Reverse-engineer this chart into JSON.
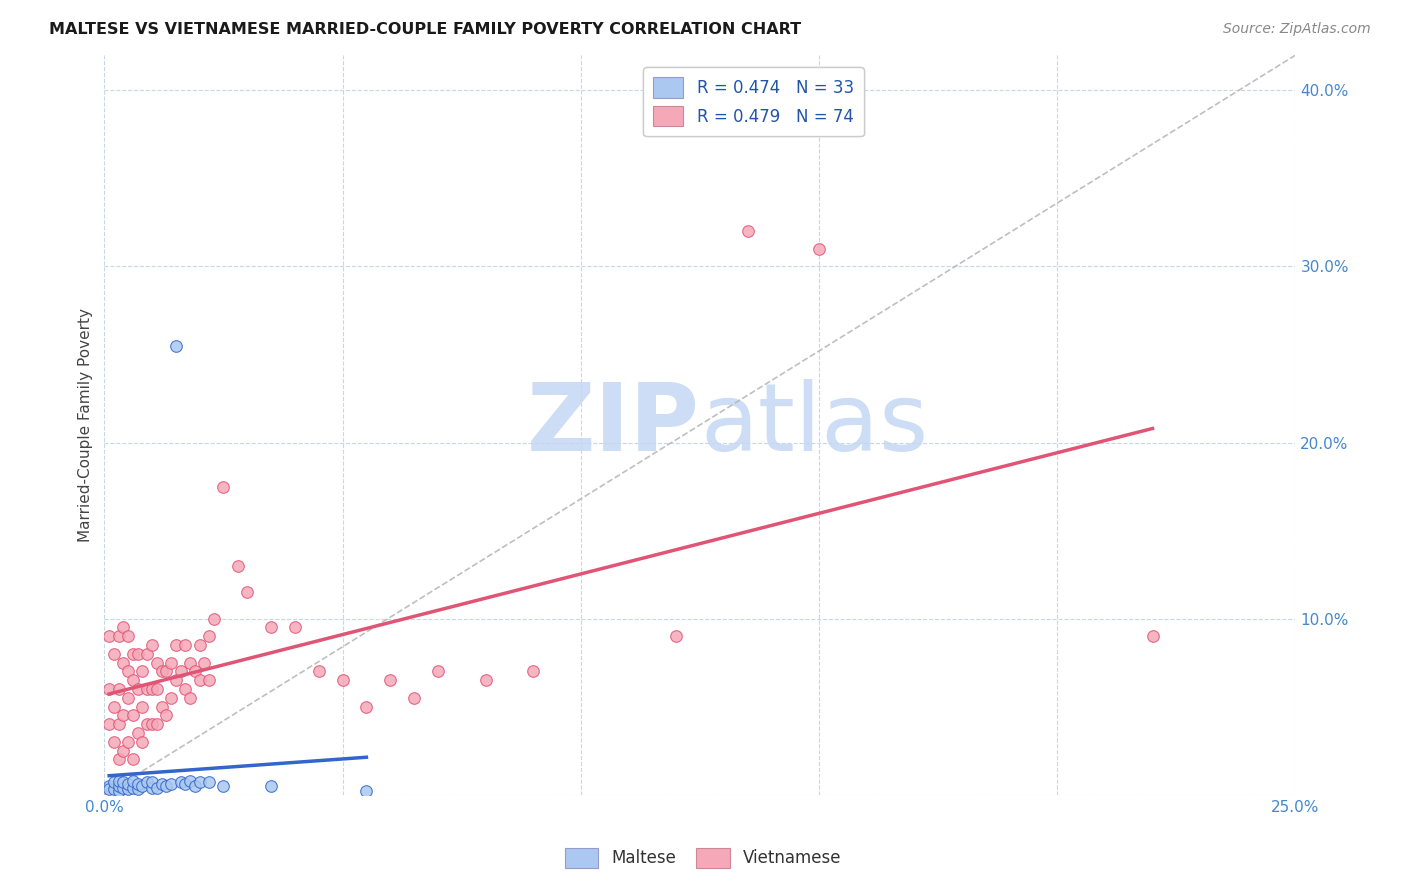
{
  "title": "MALTESE VS VIETNAMESE MARRIED-COUPLE FAMILY POVERTY CORRELATION CHART",
  "source": "Source: ZipAtlas.com",
  "ylabel": "Married-Couple Family Poverty",
  "xlim": [
    0.0,
    0.25
  ],
  "ylim": [
    0.0,
    0.42
  ],
  "maltese_line_color": "#3366cc",
  "vietnamese_line_color": "#e05575",
  "maltese_scatter_color": "#aac8f0",
  "vietnamese_scatter_color": "#f5a8b8",
  "diagonal_line_color": "#b8b8b8",
  "watermark_zip": "ZIP",
  "watermark_atlas": "atlas",
  "watermark_zip_color": "#ccddf5",
  "watermark_atlas_color": "#ccddf5",
  "scatter_size": 70,
  "maltese_R": 0.474,
  "maltese_N": 33,
  "vietnamese_R": 0.479,
  "vietnamese_N": 74,
  "bottom_legend": [
    "Maltese",
    "Vietnamese"
  ],
  "maltese_x": [
    0.001,
    0.001,
    0.002,
    0.002,
    0.003,
    0.003,
    0.003,
    0.004,
    0.004,
    0.005,
    0.005,
    0.006,
    0.006,
    0.007,
    0.007,
    0.008,
    0.009,
    0.01,
    0.01,
    0.011,
    0.012,
    0.013,
    0.014,
    0.015,
    0.016,
    0.017,
    0.018,
    0.019,
    0.02,
    0.022,
    0.025,
    0.035,
    0.055
  ],
  "maltese_y": [
    0.005,
    0.003,
    0.003,
    0.007,
    0.002,
    0.005,
    0.008,
    0.004,
    0.007,
    0.003,
    0.006,
    0.004,
    0.008,
    0.003,
    0.006,
    0.005,
    0.007,
    0.004,
    0.007,
    0.004,
    0.006,
    0.005,
    0.006,
    0.255,
    0.007,
    0.006,
    0.008,
    0.005,
    0.007,
    0.007,
    0.005,
    0.005,
    0.002
  ],
  "vietnamese_x": [
    0.001,
    0.001,
    0.001,
    0.002,
    0.002,
    0.002,
    0.003,
    0.003,
    0.003,
    0.003,
    0.004,
    0.004,
    0.004,
    0.004,
    0.005,
    0.005,
    0.005,
    0.005,
    0.006,
    0.006,
    0.006,
    0.006,
    0.007,
    0.007,
    0.007,
    0.008,
    0.008,
    0.008,
    0.009,
    0.009,
    0.009,
    0.01,
    0.01,
    0.01,
    0.011,
    0.011,
    0.011,
    0.012,
    0.012,
    0.013,
    0.013,
    0.014,
    0.014,
    0.015,
    0.015,
    0.016,
    0.017,
    0.017,
    0.018,
    0.018,
    0.019,
    0.02,
    0.02,
    0.021,
    0.022,
    0.022,
    0.023,
    0.025,
    0.028,
    0.03,
    0.035,
    0.04,
    0.045,
    0.05,
    0.055,
    0.06,
    0.065,
    0.07,
    0.08,
    0.09,
    0.12,
    0.135,
    0.15,
    0.22
  ],
  "vietnamese_y": [
    0.04,
    0.06,
    0.09,
    0.03,
    0.05,
    0.08,
    0.02,
    0.04,
    0.06,
    0.09,
    0.025,
    0.045,
    0.075,
    0.095,
    0.03,
    0.055,
    0.07,
    0.09,
    0.02,
    0.045,
    0.065,
    0.08,
    0.035,
    0.06,
    0.08,
    0.03,
    0.05,
    0.07,
    0.04,
    0.06,
    0.08,
    0.04,
    0.06,
    0.085,
    0.04,
    0.06,
    0.075,
    0.05,
    0.07,
    0.045,
    0.07,
    0.055,
    0.075,
    0.065,
    0.085,
    0.07,
    0.06,
    0.085,
    0.055,
    0.075,
    0.07,
    0.065,
    0.085,
    0.075,
    0.065,
    0.09,
    0.1,
    0.175,
    0.13,
    0.115,
    0.095,
    0.095,
    0.07,
    0.065,
    0.05,
    0.065,
    0.055,
    0.07,
    0.065,
    0.07,
    0.09,
    0.32,
    0.31,
    0.09
  ]
}
